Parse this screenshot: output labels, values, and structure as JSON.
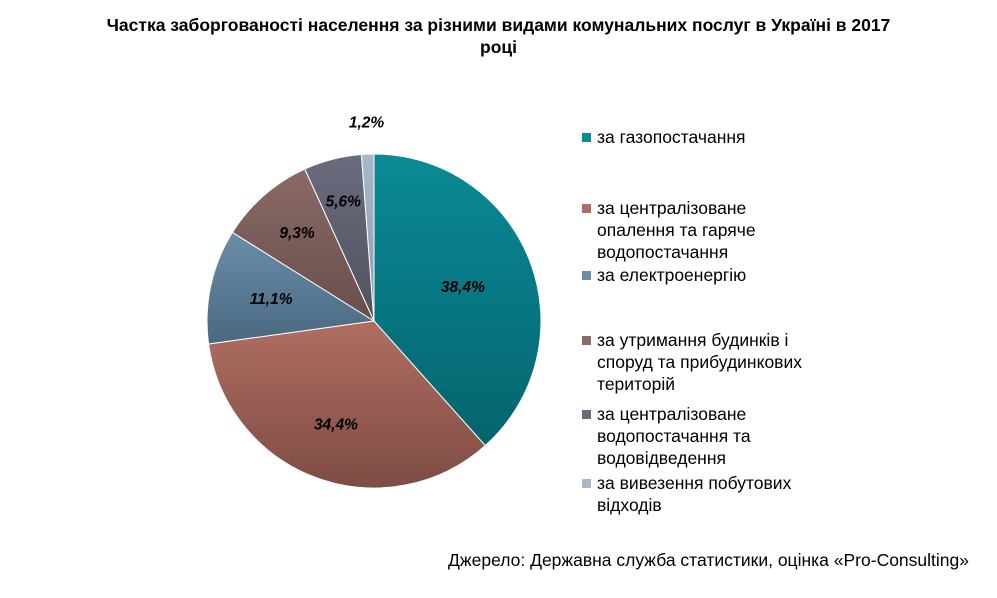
{
  "title_lines": [
    "Частка заборгованості населення за різними видами комунальних послуг в Україні в 2017",
    "році"
  ],
  "source": "Джерело: Державна служба статистики, оцінка «Pro-Consulting»",
  "chart_data": {
    "type": "pie",
    "title": "Частка заборгованості населення за різними видами комунальних послуг в Україні в 2017 році",
    "unit": "%",
    "legend_position": "right",
    "slices": [
      {
        "name_lines": [
          "за газопостачання"
        ],
        "value": 38.4,
        "label": "38,4%",
        "color": "#0a8a96",
        "color_dark": "#05646d"
      },
      {
        "name_lines": [
          "за централізоване",
          "опалення та гаряче",
          "водопостачання"
        ],
        "value": 34.4,
        "label": "34,4%",
        "color": "#b06e62",
        "color_dark": "#7e4c43"
      },
      {
        "name_lines": [
          "за електроенергію"
        ],
        "value": 11.1,
        "label": "11,1%",
        "color": "#6b8ea8",
        "color_dark": "#4a6880"
      },
      {
        "name_lines": [
          "за утримання будинків і",
          "споруд та прибудинкових",
          "територій"
        ],
        "value": 9.3,
        "label": "9,3%",
        "color": "#8a6a66",
        "color_dark": "#684e4b"
      },
      {
        "name_lines": [
          "за централізоване",
          "водопостачання та",
          "водовідведення"
        ],
        "value": 5.6,
        "label": "5,6%",
        "color": "#6a6c7e",
        "color_dark": "#50525f"
      },
      {
        "name_lines": [
          "за вивезення побутових",
          "відходів"
        ],
        "value": 1.2,
        "label": "1,2%",
        "color": "#a8b8c6",
        "color_dark": "#8a9cac"
      }
    ]
  }
}
